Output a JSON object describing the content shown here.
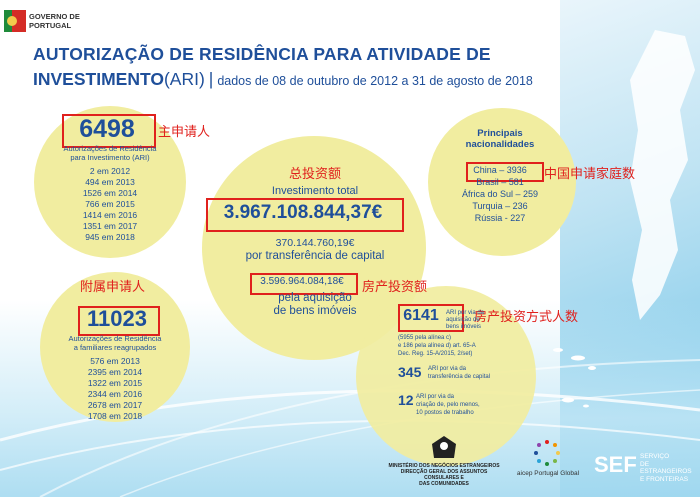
{
  "header": {
    "logo_line1": "GOVERNO DE",
    "logo_line2": "PORTUGAL",
    "title_line1": "AUTORIZAÇÃO DE RESIDÊNCIA PARA ATIVIDADE DE",
    "title_line2_bold": "INVESTIMENTO",
    "title_line2_ari": "(ARI)",
    "title_sep": "|",
    "title_subtitle": "dados de 08 de outubro de 2012 a 31 de agosto de 2018"
  },
  "main_applicants": {
    "total": "6498",
    "label_line1": "Autorizações de Residência",
    "label_line2": "para Investimento (ARI)",
    "years": [
      "2 em 2012",
      "494 em 2013",
      "1526 em 2014",
      "766 em 2015",
      "1414 em 2016",
      "1351 em 2017",
      "945 em 2018"
    ],
    "annotation": "主申请人"
  },
  "family_applicants": {
    "total": "11023",
    "label_line1": "Autorizações de Residência",
    "label_line2": "a familiares reagrupados",
    "years": [
      "576 em 2013",
      "2395 em 2014",
      "1322 em 2015",
      "2344 em 2016",
      "2678 em 2017",
      "1708 em 2018"
    ],
    "annotation": "附属申请人"
  },
  "investment": {
    "annotation_total": "总投资额",
    "label": "Investimento total",
    "total": "3.967.108.844,37€",
    "capital_amount": "370.144.760,19€",
    "capital_label": "por transferência de capital",
    "real_estate_amount": "3.596.964.084,18€",
    "real_estate_line1": "pela aquisição",
    "real_estate_line2": "de bens imóveis",
    "annotation_real_estate": "房产投资额"
  },
  "nationalities": {
    "title_line1": "Principais",
    "title_line2": "nacionalidades",
    "items": [
      "China – 3936",
      "Brasil – 581",
      "África do Sul – 259",
      "Turquia – 236",
      "Rússia - 227"
    ],
    "annotation": "中国申请家庭数"
  },
  "routes": {
    "real_estate_count": "6141",
    "real_estate_text": [
      "ARI por via da",
      "aquisição de",
      "bens imóveis"
    ],
    "real_estate_note": [
      "(5955 pela alínea c)",
      "e 186 pela alínea d) art. 65-A",
      "Dec. Reg. 15-A/2015, 2/set)"
    ],
    "capital_count": "345",
    "capital_text": [
      "ARI por via da",
      "transferência de capital"
    ],
    "jobs_count": "12",
    "jobs_text": [
      "ARI por via da",
      "criação de, pelo menos,",
      "10 postos de trabalho"
    ],
    "annotation": "房产投资方式人数"
  },
  "footer": {
    "ministry_line1": "MINISTÉRIO DOS NEGÓCIOS ESTRANGEIROS",
    "ministry_line2": "DIRECÇÃO GERAL DOS ASSUNTOS CONSULARES E",
    "ministry_line3": "DAS COMUNIDADES",
    "aicep": "aicep Portugal Global",
    "sef_logo": "SEF",
    "sef_line1": "SERVIÇO",
    "sef_line2": "DE ESTRANGEIROS",
    "sef_line3": "E FRONTEIRAS"
  },
  "colors": {
    "title_blue": "#1f4f9a",
    "circle_yellow": "#f1eda0",
    "annotation_red": "#e0211d"
  }
}
